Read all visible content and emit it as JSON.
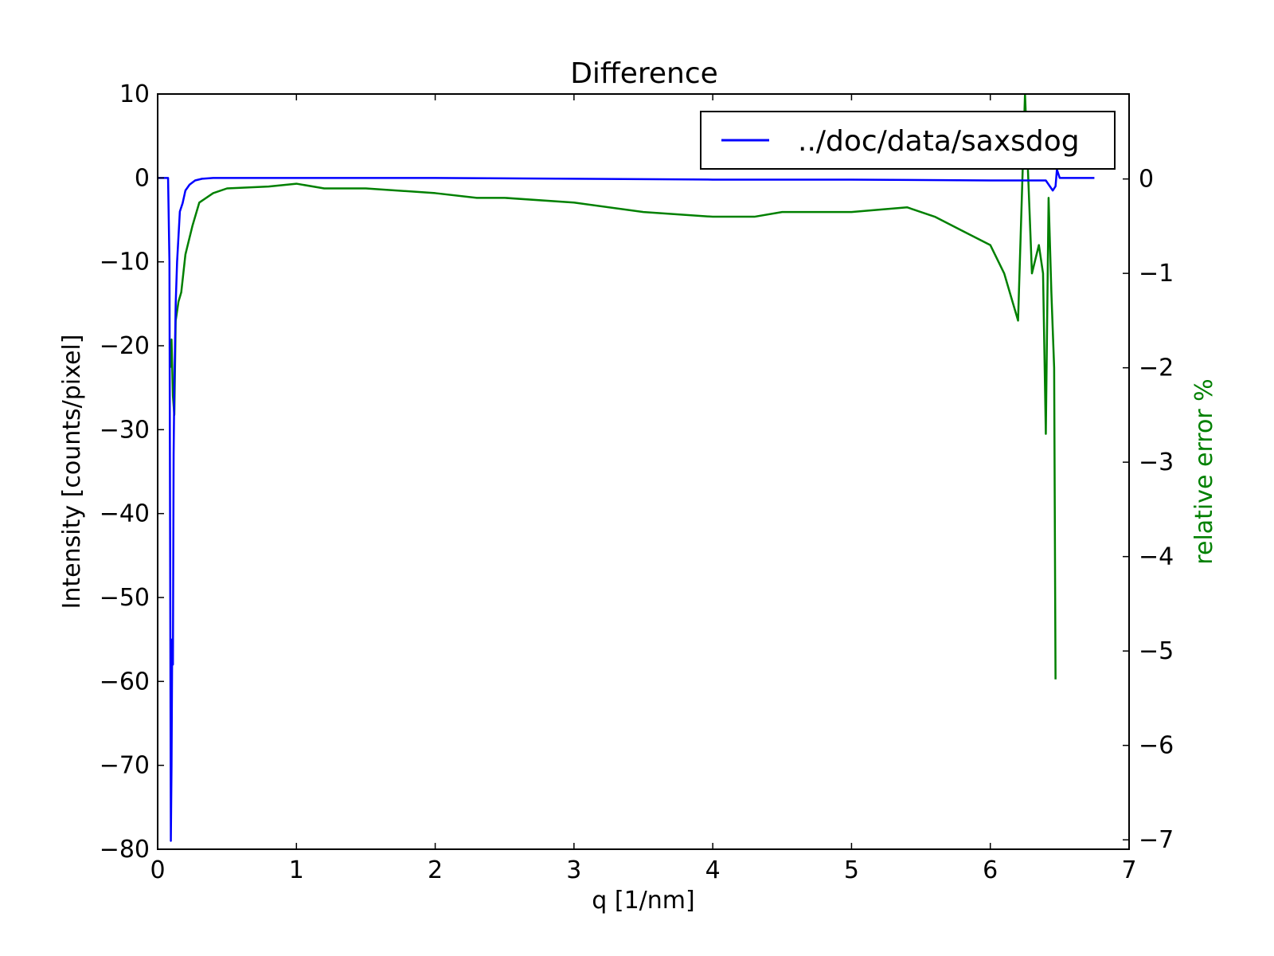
{
  "chart_data": {
    "type": "line",
    "title": "Difference",
    "xlabel": "q [1/nm]",
    "ylabel": "Intensity [counts/pixel]",
    "y2label": "relative error %",
    "xlim": [
      0,
      7
    ],
    "ylim": [
      -80,
      10
    ],
    "y2lim": [
      -7.1,
      0.9
    ],
    "xticks": [
      0,
      1,
      2,
      3,
      4,
      5,
      6,
      7
    ],
    "yticks": [
      10,
      0,
      -10,
      -20,
      -30,
      -40,
      -50,
      -60,
      -70,
      -80
    ],
    "y2ticks": [
      0,
      -1,
      -2,
      -3,
      -4,
      -5,
      -6,
      -7
    ],
    "grid": false,
    "legend_position": "top-right",
    "colors": {
      "intensity": "#0000ff",
      "relative_error": "#008000",
      "y2label": "#008000"
    },
    "series": [
      {
        "name": "../doc/data/saxsdog",
        "axis": "left",
        "x": [
          0.0,
          0.07,
          0.075,
          0.085,
          0.095,
          0.1,
          0.105,
          0.11,
          0.115,
          0.12,
          0.13,
          0.14,
          0.15,
          0.16,
          0.18,
          0.2,
          0.23,
          0.27,
          0.32,
          0.4,
          0.5,
          1.0,
          2.0,
          3.0,
          4.0,
          5.0,
          6.0,
          6.4,
          6.45,
          6.47,
          6.48,
          6.5,
          6.6,
          6.75
        ],
        "y": [
          0,
          0,
          0,
          -10,
          -79,
          -70,
          -55,
          -58,
          -33,
          -25,
          -15,
          -10,
          -7,
          -4,
          -3,
          -1.5,
          -0.8,
          -0.3,
          -0.1,
          0,
          0,
          0,
          0,
          -0.1,
          -0.2,
          -0.2,
          -0.3,
          -0.3,
          -1.5,
          -1.0,
          1.0,
          0,
          0,
          0
        ]
      },
      {
        "name": "",
        "axis": "right",
        "x": [
          0.09,
          0.1,
          0.11,
          0.12,
          0.13,
          0.15,
          0.17,
          0.2,
          0.25,
          0.3,
          0.4,
          0.5,
          0.8,
          1.0,
          1.2,
          1.5,
          2.0,
          2.3,
          2.5,
          3.0,
          3.5,
          4.0,
          4.3,
          4.5,
          5.0,
          5.4,
          5.6,
          5.8,
          6.0,
          6.1,
          6.2,
          6.25,
          6.3,
          6.35,
          6.38,
          6.4,
          6.42,
          6.44,
          6.46,
          6.47
        ],
        "y": [
          -2.0,
          -1.7,
          -2.3,
          -2.5,
          -1.5,
          -1.3,
          -1.2,
          -0.8,
          -0.5,
          -0.25,
          -0.15,
          -0.1,
          -0.08,
          -0.05,
          -0.1,
          -0.1,
          -0.15,
          -0.2,
          -0.2,
          -0.25,
          -0.35,
          -0.4,
          -0.4,
          -0.35,
          -0.35,
          -0.3,
          -0.4,
          -0.55,
          -0.7,
          -1.0,
          -1.5,
          0.9,
          -1.0,
          -0.7,
          -1.0,
          -2.7,
          -0.2,
          -1.2,
          -2.0,
          -5.3
        ]
      }
    ]
  }
}
